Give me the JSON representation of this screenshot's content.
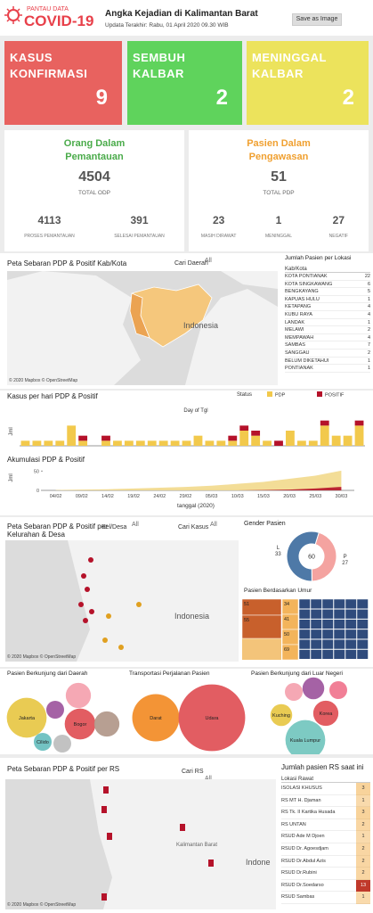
{
  "header": {
    "logo_top": "PANTAU DATA",
    "logo_main": "COVID-19",
    "title": "Angka Kejadian di Kalimantan Barat",
    "updated": "Updata Terakhir: Rabu, 01 April 2020 09.30 WIB",
    "button": "Save as Image"
  },
  "cards": [
    {
      "label": "KASUS KONFIRMASI",
      "value": 9,
      "color": "#e8625f"
    },
    {
      "label": "SEMBUH KALBAR",
      "value": 2,
      "color": "#5fd35c"
    },
    {
      "label": "MENINGGAL KALBAR",
      "value": 2,
      "color": "#ece35c"
    }
  ],
  "odp": {
    "title": "Orang Dalam Pemantauan",
    "color": "#4aab4a",
    "total": 4504,
    "total_label": "TOTAL ODP",
    "stats": [
      {
        "value": 4113,
        "label": "PROSES PEMANTAUAN"
      },
      {
        "value": 391,
        "label": "SELESAI PEMANTAUAN"
      }
    ]
  },
  "pdp": {
    "title": "Pasien Dalam Pengawasan",
    "color": "#f0a030",
    "total": 51,
    "total_label": "TOTAL PDP",
    "stats": [
      {
        "value": 23,
        "label": "MASIH DIRAWAT"
      },
      {
        "value": 1,
        "label": "MENINGGAL"
      },
      {
        "value": 27,
        "label": "NEGATIF"
      }
    ]
  },
  "map_kab": {
    "title": "Peta Sebaran PDP & Positif Kab/Kota",
    "filter_label": "Cari Daerah",
    "filter_value": "All",
    "place": "Indonesia",
    "credit": "© 2020 Mapbox © OpenStreetMap"
  },
  "location_table": {
    "title": "Jumlah Pasien per Lokasi",
    "column": "Kab/Kota",
    "rows": [
      [
        "KOTA PONTIANAK",
        22
      ],
      [
        "KOTA SINGKAWANG",
        6
      ],
      [
        "BENGKAYANG",
        5
      ],
      [
        "KAPUAS HULU",
        1
      ],
      [
        "KETAPANG",
        4
      ],
      [
        "KUBU RAYA",
        4
      ],
      [
        "LANDAK",
        1
      ],
      [
        "MELAWI",
        2
      ],
      [
        "MEMPAWAH",
        4
      ],
      [
        "SAMBAS",
        7
      ],
      [
        "SANGGAU",
        2
      ],
      [
        "BELUM DIKETAHUI",
        1
      ],
      [
        "PONTIANAK",
        1
      ]
    ]
  },
  "map_desa": {
    "title": "Peta Sebaran PDP & Positif per Kelurahan & Desa",
    "filter1_label": "Kel/Desa",
    "filter1_value": "All",
    "filter2_label": "Cari Kasus",
    "filter2_value": "All",
    "place": "Indonesia",
    "credit": "© 2020 Mapbox © OpenStreetMap"
  },
  "map_rs": {
    "title": "Peta Sebaran PDP & Positif per RS",
    "filter_label": "Cari RS",
    "filter_value": "All",
    "places": [
      "Kalimantan Barat",
      "Indone"
    ],
    "credit": "© 2020 Mapbox © OpenStreetMap"
  },
  "rs_table": {
    "title": "Jumlah pasien RS saat ini",
    "column": "Lokasi Rawat",
    "rows": [
      [
        "ISOLASI KHUSUS",
        3
      ],
      [
        "RS MT H. Djaman",
        1
      ],
      [
        "RS Tk. II Kartika Husada",
        3
      ],
      [
        "RS UNTAN",
        2
      ],
      [
        "RSUD Ade M Djoen",
        1
      ],
      [
        "RSUD Dr. Agoesdjam",
        2
      ],
      [
        "RSUD Dr.Abdul Azis",
        2
      ],
      [
        "RSUD Dr.Rubini",
        2
      ],
      [
        "RSUD Dr.Soedarso",
        13
      ],
      [
        "RSUD Sambas",
        1
      ]
    ]
  },
  "chart_data": [
    {
      "type": "bar",
      "title": "Kasus per hari PDP & Positif",
      "x_title": "Day of Tgl",
      "y_title": "Jml",
      "legend_title": "Status",
      "categories": [
        null,
        null,
        null,
        null,
        null,
        null,
        null,
        null,
        null,
        null,
        null,
        null,
        null,
        null,
        null,
        null,
        null,
        null,
        null,
        null,
        null,
        null,
        null,
        null,
        null,
        null,
        null,
        null,
        null,
        null
      ],
      "series": [
        {
          "name": "PDP",
          "color": "#f2c94c",
          "values": [
            1,
            1,
            1,
            1,
            4,
            1,
            0,
            1,
            1,
            1,
            1,
            1,
            1,
            1,
            1,
            2,
            1,
            1,
            1,
            3,
            2,
            1,
            0,
            3,
            1,
            1,
            4,
            2,
            2,
            4
          ]
        },
        {
          "name": "POSITIF",
          "color": "#b5122a",
          "values": [
            0,
            0,
            0,
            0,
            0,
            1,
            0,
            1,
            0,
            0,
            0,
            0,
            0,
            0,
            0,
            0,
            0,
            0,
            1,
            1,
            1,
            0,
            1,
            0,
            0,
            0,
            1,
            0,
            0,
            1
          ]
        }
      ],
      "ylim": [
        0,
        6
      ]
    },
    {
      "type": "area",
      "title": "Akumulasi PDP & Positif",
      "x_title": "tanggal (2020)",
      "y_title": "Jml",
      "categories": [
        "04/02",
        "09/02",
        "14/02",
        "19/02",
        "24/02",
        "29/02",
        "05/03",
        "10/03",
        "15/03",
        "20/03",
        "25/03",
        "30/03"
      ],
      "series": [
        {
          "name": "PDP",
          "color": "#f2d98c",
          "values": [
            1,
            2,
            3,
            5,
            7,
            9,
            12,
            17,
            22,
            30,
            38,
            51
          ]
        },
        {
          "name": "POSITIF",
          "color": "#b5122a",
          "values": [
            0,
            0,
            0,
            0,
            0,
            0,
            0,
            0,
            1,
            2,
            5,
            9
          ]
        }
      ],
      "ylim": [
        0,
        60
      ],
      "yticks": [
        0,
        50
      ]
    },
    {
      "type": "pie",
      "title": "Gender Pasien",
      "categories": [
        "P",
        "L"
      ],
      "values": [
        27,
        33
      ],
      "colors": [
        "#f4a3a0",
        "#4e79a7"
      ],
      "total": 60
    },
    {
      "type": "treemap",
      "title": "Pasien Berdasarkan Umur",
      "values": [
        51,
        55,
        34,
        41,
        50,
        69
      ],
      "colors": [
        "#c8602c",
        "#c8602c",
        "#f3b45b",
        "#f3b45b",
        "#f3b45b",
        "#f3b45b"
      ]
    },
    {
      "type": "bubble",
      "title": "Pasien Berkunjung dari  Daerah",
      "categories": [
        "Jakarta",
        "Bogor",
        "Cilido",
        null,
        null,
        null,
        null
      ],
      "values": [
        5,
        3,
        1,
        2,
        1,
        2,
        1
      ],
      "colors": [
        "#e8c84a",
        "#e0545a",
        "#6cc0c0",
        "#f4a3b0",
        "#a05aa0",
        "#b39a8c",
        "#bfbfbf"
      ]
    },
    {
      "type": "bubble",
      "title": "Transportasi Perjalanan Pasien",
      "categories": [
        "Darat",
        "Udara"
      ],
      "values": [
        7,
        14
      ],
      "colors": [
        "#f28e2b",
        "#e0545a"
      ]
    },
    {
      "type": "bubble",
      "title": "Pasien Berkunjung dari Luar Negeri",
      "categories": [
        "Kuching",
        "Korea",
        "Kuala Lumpur",
        null,
        null,
        null
      ],
      "values": [
        1.5,
        2,
        5,
        1,
        1.5,
        1
      ],
      "colors": [
        "#e8c84a",
        "#e0545a",
        "#76c7c0",
        "#f4a3b0",
        "#a05aa0",
        "#f07890"
      ]
    }
  ]
}
